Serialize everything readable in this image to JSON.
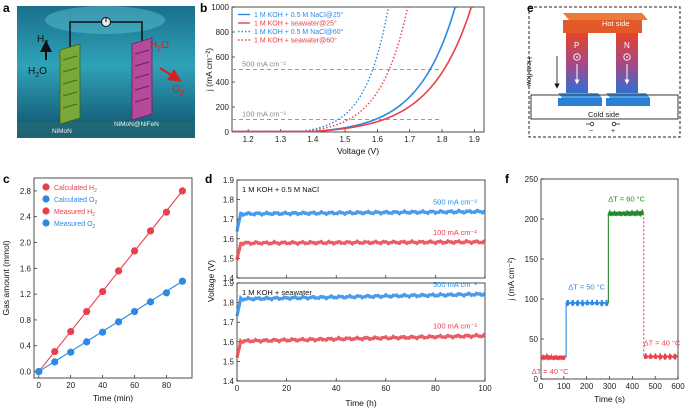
{
  "panels": {
    "a": {
      "label": "a",
      "h2": "H",
      "h2_sub": "2",
      "h2o_left": "H",
      "h2o_left_sub": "2",
      "h2o_left_tail": "O",
      "h2o_right": "H",
      "h2o_right_sub": "2",
      "h2o_right_tail": "O",
      "o2": "O",
      "o2_sub": "2",
      "cathode": "NiMoN",
      "anode": "NiMoN@NiFeN"
    },
    "e": {
      "label": "e",
      "hot": "Hot side",
      "cold": "Cold side",
      "heat": "Heat flow",
      "p": "P",
      "n": "N",
      "minus": "−",
      "plus": "+"
    }
  },
  "colors": {
    "blue": "#2a8ae6",
    "red": "#e8414a",
    "green": "#238a2a",
    "grey": "#9a9a9a"
  },
  "chart_data": [
    {
      "id": "b",
      "label": "b",
      "type": "line",
      "xlabel": "Voltage (V)",
      "ylabel": "j (mA cm⁻²)",
      "xlim": [
        1.15,
        1.93
      ],
      "ylim": [
        0,
        1000
      ],
      "xticks": [
        "1.2",
        "1.3",
        "1.4",
        "1.5",
        "1.6",
        "1.7",
        "1.8",
        "1.9"
      ],
      "yticks": [
        "0",
        "200",
        "400",
        "600",
        "800",
        "1000"
      ],
      "hlines": [
        {
          "y": 500,
          "label": "500 mA cm⁻²"
        },
        {
          "y": 100,
          "label": "100 mA cm⁻²"
        }
      ],
      "series": [
        {
          "name": "1 M KOH + 0.5 M NaCl@25°",
          "color": "#2a8ae6",
          "style": "solid",
          "onset": 1.4,
          "v500": 1.764,
          "k": 0.115
        },
        {
          "name": "1 M KOH + seawater@25°",
          "color": "#e8414a",
          "style": "solid",
          "onset": 1.4,
          "v500": 1.807,
          "k": 0.125
        },
        {
          "name": "1 M KOH + 0.5 M NaCl@60°",
          "color": "#2a8ae6",
          "style": "dotted",
          "onset": 1.36,
          "v500": 1.586,
          "k": 0.072
        },
        {
          "name": "1 M KOH + seawater@60°",
          "color": "#e8414a",
          "style": "dotted",
          "onset": 1.37,
          "v500": 1.637,
          "k": 0.085
        }
      ]
    },
    {
      "id": "c",
      "label": "c",
      "type": "scatter",
      "xlabel": "Time (min)",
      "ylabel": "Gas amount (mmol)",
      "xlim": [
        -3,
        96
      ],
      "ylim": [
        -0.1,
        3.0
      ],
      "xticks": [
        "0",
        "20",
        "40",
        "60",
        "80"
      ],
      "yticks": [
        "0.0",
        "0.4",
        "0.8",
        "1.2",
        "1.6",
        "2.0",
        "2.4",
        "2.8"
      ],
      "legend": [
        {
          "name": "Calculated H",
          "sub": "2",
          "color": "#e8414a"
        },
        {
          "name": "Calculated O",
          "sub": "2",
          "color": "#2a8ae6"
        },
        {
          "name": "Measured H",
          "sub": "2",
          "color": "#e8414a"
        },
        {
          "name": "Measured O",
          "sub": "2",
          "color": "#2a8ae6"
        }
      ],
      "series": [
        {
          "name": "H2",
          "color": "#e8414a",
          "x": [
            0,
            10,
            20,
            30,
            40,
            50,
            60,
            70,
            80,
            90
          ],
          "y": [
            0,
            0.31,
            0.62,
            0.93,
            1.24,
            1.56,
            1.87,
            2.18,
            2.47,
            2.8
          ],
          "fit": [
            [
              0,
              0
            ],
            [
              90,
              2.8
            ]
          ]
        },
        {
          "name": "O2",
          "color": "#2a8ae6",
          "x": [
            0,
            10,
            20,
            30,
            40,
            50,
            60,
            70,
            80,
            90
          ],
          "y": [
            0,
            0.15,
            0.3,
            0.46,
            0.61,
            0.77,
            0.93,
            1.08,
            1.22,
            1.4
          ],
          "fit": [
            [
              0,
              0
            ],
            [
              90,
              1.4
            ]
          ]
        }
      ]
    },
    {
      "id": "d",
      "label": "d",
      "type": "line",
      "xlabel": "Time (h)",
      "ylabel": "Voltage (V)",
      "xlim": [
        0,
        100
      ],
      "xticks": [
        "0",
        "20",
        "40",
        "60",
        "80",
        "100"
      ],
      "subplots": [
        {
          "title": "1 M KOH + 0.5 M NaCl",
          "ylim": [
            1.4,
            1.9
          ],
          "yticks": [
            "1.4",
            "1.5",
            "1.6",
            "1.7",
            "1.8",
            "1.9"
          ],
          "series": [
            {
              "name": "500 mA cm⁻²",
              "color": "#2a8ae6",
              "level": 1.727,
              "drift": 0.012
            },
            {
              "name": "100 mA cm⁻²",
              "color": "#e8414a",
              "level": 1.578,
              "drift": 0.006
            }
          ]
        },
        {
          "title": "1 M KOH + seawater",
          "ylim": [
            1.4,
            1.9
          ],
          "yticks": [
            "1.4",
            "1.5",
            "1.6",
            "1.7",
            "1.8",
            "1.9"
          ],
          "series": [
            {
              "name": "500 mA cm⁻²",
              "color": "#2a8ae6",
              "level": 1.818,
              "drift": 0.025
            },
            {
              "name": "100 mA cm⁻²",
              "color": "#e8414a",
              "level": 1.603,
              "drift": 0.028
            }
          ]
        }
      ]
    },
    {
      "id": "f",
      "label": "f",
      "type": "line",
      "xlabel": "Time (s)",
      "ylabel": "j (mA cm⁻²)",
      "xlim": [
        0,
        600
      ],
      "ylim": [
        0,
        250
      ],
      "xticks": [
        "0",
        "100",
        "200",
        "300",
        "400",
        "500",
        "600"
      ],
      "yticks": [
        "0",
        "50",
        "100",
        "150",
        "200",
        "250"
      ],
      "segments": [
        {
          "label": "ΔT = 40 °C",
          "color": "#e8414a",
          "x": [
            0,
            110
          ],
          "y": 27
        },
        {
          "label": "ΔT = 50 °C",
          "color": "#2a8ae6",
          "x": [
            110,
            295
          ],
          "y": 95
        },
        {
          "label": "ΔT = 60 °C",
          "color": "#238a2a",
          "x": [
            295,
            450
          ],
          "y": 207
        },
        {
          "label": "ΔT = 40 °C",
          "color": "#e8414a",
          "x": [
            450,
            600
          ],
          "y": 28
        }
      ]
    }
  ]
}
